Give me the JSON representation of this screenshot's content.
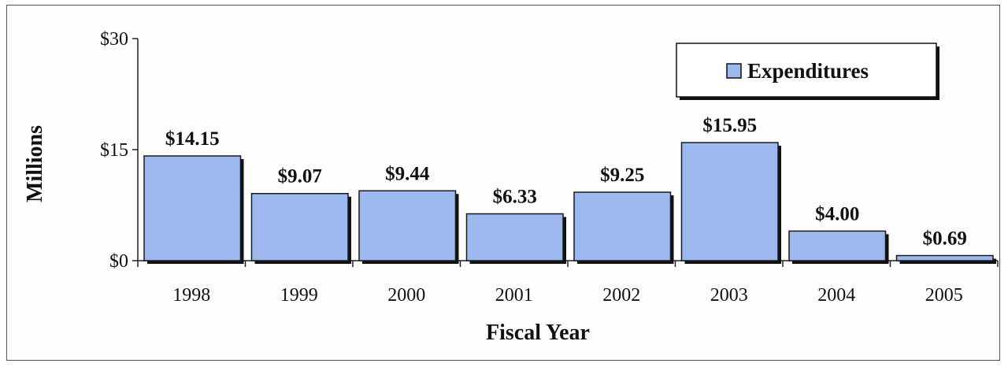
{
  "chart_data": {
    "type": "bar",
    "categories": [
      "1998",
      "1999",
      "2000",
      "2001",
      "2002",
      "2003",
      "2004",
      "2005"
    ],
    "series": [
      {
        "name": "Expenditures",
        "values": [
          14.15,
          9.07,
          9.44,
          6.33,
          9.25,
          15.95,
          4.0,
          0.69
        ],
        "labels": [
          "$14.15",
          "$9.07",
          "$9.44",
          "$6.33",
          "$9.25",
          "$15.95",
          "$4.00",
          "$0.69"
        ]
      }
    ],
    "xlabel": "Fiscal Year",
    "ylabel": "Millions",
    "ylim": [
      0,
      30
    ],
    "yticks": [
      0,
      15,
      30
    ],
    "ytick_labels": [
      "$0",
      "$15",
      "$30"
    ],
    "grid": false,
    "legend_position": "top-right",
    "colors": {
      "bar_fill": "#9db8ef",
      "bar_stroke": "#1a1a1a",
      "bar_shadow": "#111111"
    }
  }
}
